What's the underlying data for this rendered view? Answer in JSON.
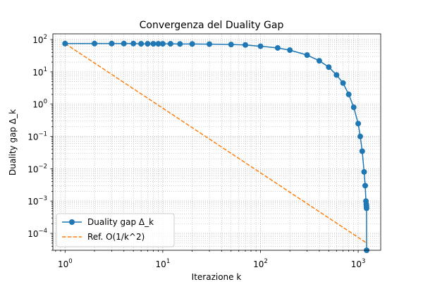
{
  "chart_data": {
    "type": "line",
    "title": "Convergenza del Duality Gap",
    "xlabel": "Iterazione k",
    "ylabel": "Duality gap Δ_k",
    "xscale": "log",
    "yscale": "log",
    "xlim": [
      0.75,
      1700
    ],
    "ylim": [
      3e-05,
      150
    ],
    "grid": "on (major and minor, dotted)",
    "legend_position": "lower-left",
    "x_tick_labels": [
      {
        "value": 1,
        "base": "10",
        "exp": "0"
      },
      {
        "value": 10,
        "base": "10",
        "exp": "1"
      },
      {
        "value": 100,
        "base": "10",
        "exp": "2"
      },
      {
        "value": 1000,
        "base": "10",
        "exp": "3"
      }
    ],
    "y_tick_labels": [
      {
        "value": 0.0001,
        "base": "10",
        "exp": "−4"
      },
      {
        "value": 0.001,
        "base": "10",
        "exp": "−3"
      },
      {
        "value": 0.01,
        "base": "10",
        "exp": "−2"
      },
      {
        "value": 0.1,
        "base": "10",
        "exp": "−1"
      },
      {
        "value": 1,
        "base": "10",
        "exp": "0"
      },
      {
        "value": 10,
        "base": "10",
        "exp": "1"
      },
      {
        "value": 100,
        "base": "10",
        "exp": "2"
      }
    ],
    "series": [
      {
        "name": "Duality gap Δ_k",
        "color": "#1f77b4",
        "style": "solid line with circle markers",
        "x": [
          1,
          2,
          3,
          4,
          5,
          6,
          7,
          8,
          9,
          10,
          12,
          15,
          20,
          30,
          50,
          70,
          100,
          150,
          200,
          300,
          400,
          500,
          600,
          700,
          800,
          900,
          1000,
          1050,
          1100,
          1150,
          1180,
          1200,
          1210,
          1215,
          1218,
          1220
        ],
        "values": [
          75,
          75,
          75,
          75,
          75,
          74,
          74,
          74,
          74,
          74,
          74,
          73,
          73,
          72,
          70,
          68,
          62,
          55,
          47,
          33,
          22,
          14,
          8,
          4.5,
          2,
          0.8,
          0.25,
          0.1,
          0.035,
          0.008,
          0.003,
          0.001,
          0.0008,
          0.0007,
          0.0006,
          3e-05
        ]
      },
      {
        "name": "Ref. O(1/k^2)",
        "color": "#ff7f0e",
        "style": "dashed line",
        "x": [
          1,
          1220
        ],
        "values": [
          75,
          5.04e-05
        ]
      }
    ]
  }
}
